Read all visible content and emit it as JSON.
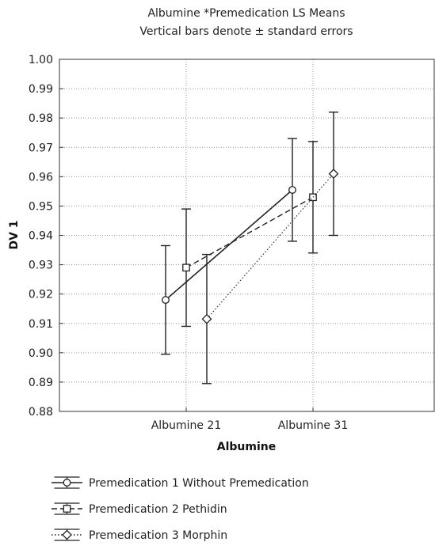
{
  "chart_data": {
    "type": "line",
    "title": "Albumine *Premedication LS Means",
    "subtitle": "Vertical bars denote ± standard errors",
    "xlabel": "Albumine",
    "ylabel": "DV 1",
    "categories": [
      "Albumine 21",
      "Albumine 31"
    ],
    "ylim": [
      0.88,
      1.0
    ],
    "yticks": [
      "0.88",
      "0.89",
      "0.90",
      "0.91",
      "0.92",
      "0.93",
      "0.94",
      "0.95",
      "0.96",
      "0.97",
      "0.98",
      "0.99",
      "1.00"
    ],
    "grid": true,
    "legend_position": "bottom",
    "series": [
      {
        "name": "Premedication 1 Without Premedication",
        "marker": "circle",
        "dash": "solid",
        "values": [
          0.918,
          0.9555
        ],
        "errors": [
          0.0185,
          0.0175
        ]
      },
      {
        "name": "Premedication 2 Pethidin",
        "marker": "square",
        "dash": "dashed",
        "values": [
          0.929,
          0.953
        ],
        "errors": [
          0.02,
          0.019
        ]
      },
      {
        "name": "Premedication 3 Morphin",
        "marker": "diamond",
        "dash": "dotted",
        "values": [
          0.9115,
          0.961
        ],
        "errors": [
          0.022,
          0.021
        ]
      }
    ],
    "colors": {
      "line": "#222222",
      "grid": "#999999",
      "axis": "#333333"
    }
  }
}
